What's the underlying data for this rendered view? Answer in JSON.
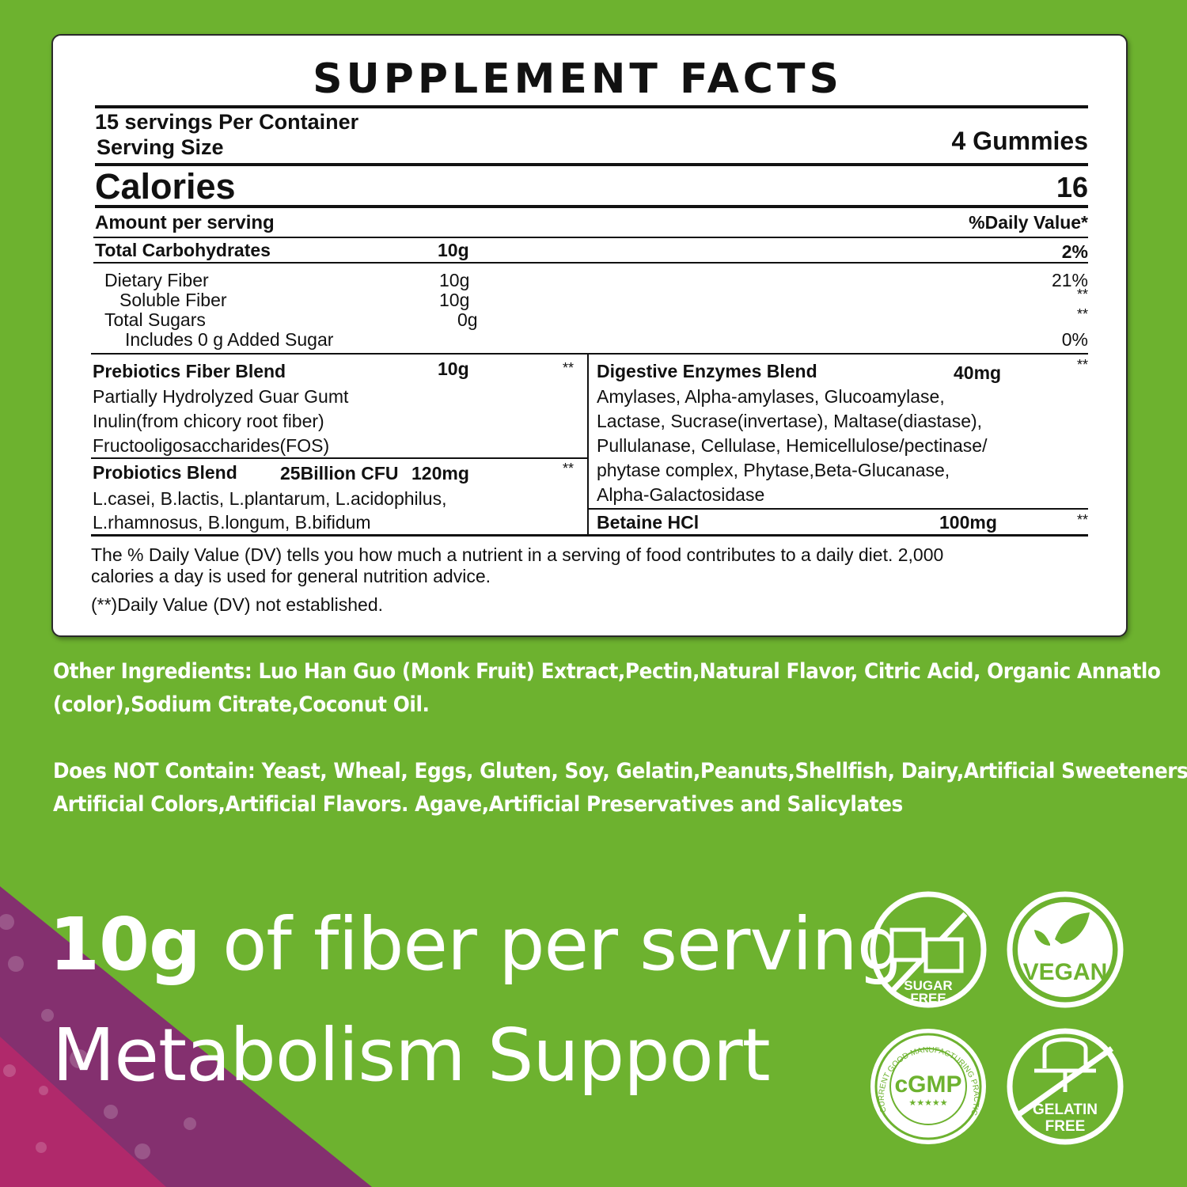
{
  "facts": {
    "title": "SUPPLEMENT FACTS",
    "servings": "15 servings Per Container",
    "serving_size_label": "Serving Size",
    "serving_size_value": "4 Gummies",
    "calories_label": "Calories",
    "calories_value": "16",
    "amount_per_serving": "Amount per serving",
    "daily_value_header": "%Daily Value*",
    "rows": [
      {
        "name": "Total Carbohydrates",
        "amount": "10g",
        "dv": "2%"
      },
      {
        "name": "Dietary Fiber",
        "amount": "10g",
        "dv": "21%"
      },
      {
        "name": "Soluble Fiber",
        "amount": "10g",
        "dv": "**"
      },
      {
        "name": "Total Sugars",
        "amount": "0g",
        "dv": "**"
      },
      {
        "name": "Includes 0 g Added Sugar",
        "amount": "",
        "dv": "0%"
      }
    ],
    "prebiotics": {
      "name": "Prebiotics Fiber Blend",
      "amount": "10g",
      "dv": "**",
      "items": [
        "Partially Hydrolyzed Guar Gumt",
        "Inulin(from chicory root fiber)",
        "Fructooligosaccharides(FOS)"
      ]
    },
    "probiotics": {
      "name": "Probiotics Blend",
      "cfu": "25Billion CFU",
      "amount": "120mg",
      "dv": "**",
      "items": [
        "L.casei, B.lactis, L.plantarum, L.acidophilus,",
        "L.rhamnosus, B.longum, B.bifidum"
      ]
    },
    "enzymes": {
      "name": "Digestive Enzymes Blend",
      "amount": "40mg",
      "dv": "**",
      "items": [
        "Amylases, Alpha-amylases, Glucoamylase,",
        "Lactase, Sucrase(invertase), Maltase(diastase),",
        "Pullulanase, Cellulase, Hemicellulose/pectinase/",
        "phytase complex, Phytase,Beta-Glucanase,",
        "Alpha-Galactosidase"
      ]
    },
    "betaine": {
      "name": "Betaine HCl",
      "amount": "100mg",
      "dv": "**"
    },
    "footnote_1a": "The % Daily Value (DV) tells you how much a nutrient in a serving of food contributes to a daily diet. 2,000",
    "footnote_1b": "calories a day is used for general nutrition advice.",
    "footnote_2": "(**)Daily Value (DV) not established."
  },
  "other_ingredients": [
    "Other Ingredients: Luo Han Guo (Monk Fruit) Extract,Pectin,Natural Flavor, Citric Acid, Organic Annatlo",
    "(color),Sodium Citrate,Coconut Oil."
  ],
  "does_not_contain": [
    "Does NOT Contain: Yeast, Wheal, Eggs, Gluten, Soy, Gelatin,Peanuts,Shellfish, Dairy,Artificial Sweeteners,",
    "Artificial Colors,Artificial Flavors. Agave,Artificial Preservatives and Salicylates"
  ],
  "headline": {
    "bold": "10g",
    "rest": " of fiber per serving",
    "line2": "Metabolism Support"
  },
  "badges": {
    "sugar_free": [
      "SUGAR",
      "FREE"
    ],
    "vegan": "VEGAN",
    "cgmp": "cGMP",
    "cgmp_ring": "CURRENT GOOD MANUFACTURING PRACTICE",
    "cgmp_stars": "★★★★★",
    "gelatin_free": [
      "GELATIN",
      "FREE"
    ]
  },
  "colors": {
    "background": "#6db22f",
    "purple": "#84306f",
    "magenta": "#b0296b"
  }
}
